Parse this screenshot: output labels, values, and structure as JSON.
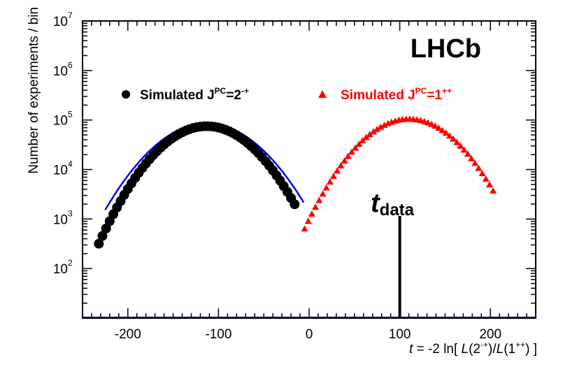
{
  "chart_data": {
    "type": "scatter",
    "title": "",
    "logo": "LHCb",
    "xlabel": {
      "prefix": "t",
      "mid": " = -2 ln[ ",
      "L1": "L",
      "arg1": "(2",
      "arg1_sup": "-+",
      "sep": ")/",
      "L2": "L",
      "arg2": "(1",
      "arg2_sup": "++",
      "suffix": ") ]"
    },
    "ylabel": "Number of experiments / bin",
    "x_range": [
      -250,
      250
    ],
    "y_range_log10": [
      1,
      7
    ],
    "x_ticks": [
      {
        "value": -200,
        "label": "-200"
      },
      {
        "value": -100,
        "label": "-100"
      },
      {
        "value": 0,
        "label": "0"
      },
      {
        "value": 100,
        "label": "100"
      },
      {
        "value": 200,
        "label": "200"
      }
    ],
    "y_ticks": [
      {
        "exp": 2,
        "base": "10",
        "sup": "2"
      },
      {
        "exp": 3,
        "base": "10",
        "sup": "3"
      },
      {
        "exp": 4,
        "base": "10",
        "sup": "4"
      },
      {
        "exp": 5,
        "base": "10",
        "sup": "5"
      },
      {
        "exp": 6,
        "base": "10",
        "sup": "6"
      },
      {
        "exp": 7,
        "base": "10",
        "sup": "7"
      }
    ],
    "legend": [
      {
        "label_main": "Simulated J",
        "label_sup": "PC",
        "label_eq": "=2",
        "label_sup2": "-+",
        "marker": "circle",
        "color": "#000000"
      },
      {
        "label_main": "Simulated J",
        "label_sup": "PC",
        "label_eq": "=1",
        "label_sup2": "++",
        "marker": "triangle",
        "color": "#ff0000"
      }
    ],
    "series": [
      {
        "name": "Simulated J^PC=2^-+",
        "marker": "circle",
        "color": "#000000",
        "mean": -113,
        "sigma": 36,
        "peak": 75000,
        "x_min": -232,
        "x_max": -16,
        "bin_width": 4
      },
      {
        "name": "Simulated J^PC=1^++",
        "marker": "triangle",
        "color": "#ff0000",
        "mean": 110,
        "sigma": 36,
        "peak": 105000,
        "x_min": -5,
        "x_max": 206,
        "bin_width": 4
      }
    ],
    "fit_curve": {
      "name": "Gaussian fit",
      "color": "#0000ff",
      "mean": -113,
      "sigma": 39.5,
      "peak": 85000,
      "x_min": -225,
      "x_max": -6
    },
    "data_line": {
      "x": 100,
      "y_top": 1150,
      "label": "t",
      "label_sub": "data"
    }
  }
}
